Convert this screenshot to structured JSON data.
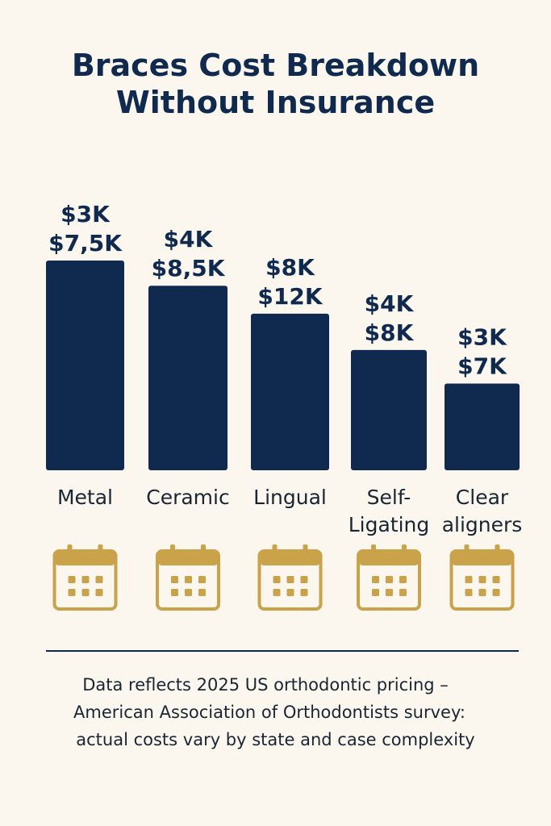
{
  "title": {
    "line1": "Braces Cost Breakdown",
    "line2": "Without Insurance"
  },
  "chart_data": {
    "type": "bar",
    "categories": [
      "Metal",
      "Ceramic",
      "Lingual",
      "Self-Ligating",
      "Clear aligners"
    ],
    "category_lines": [
      [
        "Metal"
      ],
      [
        "Ceramic"
      ],
      [
        "Lingual"
      ],
      [
        "Self-",
        "Ligating"
      ],
      [
        "Clear",
        "aligners"
      ]
    ],
    "range_labels": [
      [
        "$3K",
        "$7,5K"
      ],
      [
        "$4K",
        "$8,5K"
      ],
      [
        "$8K",
        "$12K"
      ],
      [
        "$4K",
        "$8K"
      ],
      [
        "$3K",
        "$7K"
      ]
    ],
    "values": [
      7.5,
      6.6,
      5.6,
      4.3,
      3.1
    ],
    "bar_color": "#0f2a4e",
    "icon": "calendar-icon",
    "icon_color": "#c9a24a"
  },
  "footnote": {
    "line1": "Data reflects 2025 US orthodontic pricing –",
    "line2": "American Association of Orthodontists survey:",
    "line3": "actual costs vary by state and case complexity"
  }
}
